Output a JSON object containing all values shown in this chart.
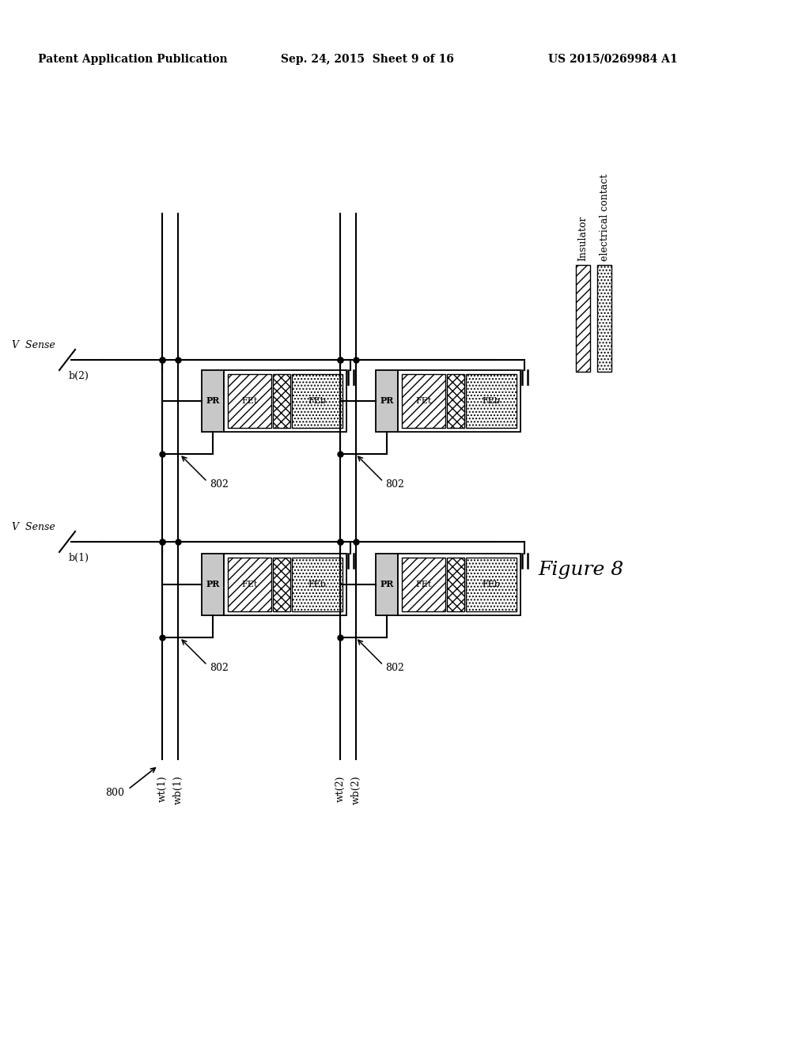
{
  "header_left": "Patent Application Publication",
  "header_center": "Sep. 24, 2015  Sheet 9 of 16",
  "header_right": "US 2015/0269984 A1",
  "figure_label": "Figure 8",
  "background_color": "#ffffff",
  "line_color": "#000000"
}
